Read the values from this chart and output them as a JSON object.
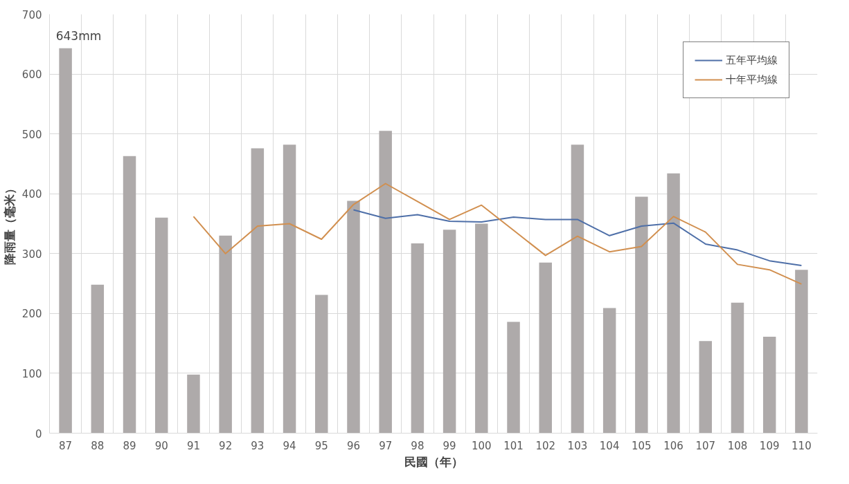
{
  "chart_data": {
    "type": "bar",
    "xlabel": "民國（年）",
    "ylabel": "降雨量（毫米）",
    "categories": [
      "87",
      "88",
      "89",
      "90",
      "91",
      "92",
      "93",
      "94",
      "95",
      "96",
      "97",
      "98",
      "99",
      "100",
      "101",
      "102",
      "103",
      "104",
      "105",
      "106",
      "107",
      "108",
      "109",
      "110"
    ],
    "series": [
      {
        "color": "#aeaaaa",
        "values": [
          643,
          248,
          463,
          360,
          98,
          330,
          476,
          482,
          231,
          388,
          505,
          317,
          340,
          350,
          186,
          285,
          482,
          209,
          395,
          434,
          154,
          218,
          161,
          273
        ]
      },
      {
        "type": "line",
        "name": "五年平均線",
        "color": "#4e6fa8",
        "values": [
          null,
          null,
          null,
          null,
          null,
          null,
          null,
          null,
          null,
          373,
          359,
          365,
          354,
          353,
          361,
          357,
          357,
          330,
          346,
          351,
          316,
          306,
          288,
          280
        ]
      },
      {
        "type": "line",
        "name": "十年平均線",
        "color": "#d18f4f",
        "values": [
          null,
          null,
          null,
          null,
          362,
          300,
          346,
          350,
          324,
          382,
          417,
          387,
          357,
          381,
          339,
          297,
          329,
          303,
          312,
          362,
          336,
          282,
          273,
          249
        ]
      }
    ],
    "annotations": [
      {
        "text": "643mm",
        "x": "87",
        "y": 643
      }
    ],
    "ylim": [
      0,
      700
    ],
    "yticks": [
      0,
      100,
      200,
      300,
      400,
      500,
      600,
      700
    ],
    "grid": true,
    "legend": "top right",
    "marker": "none",
    "line_style": "solid"
  }
}
